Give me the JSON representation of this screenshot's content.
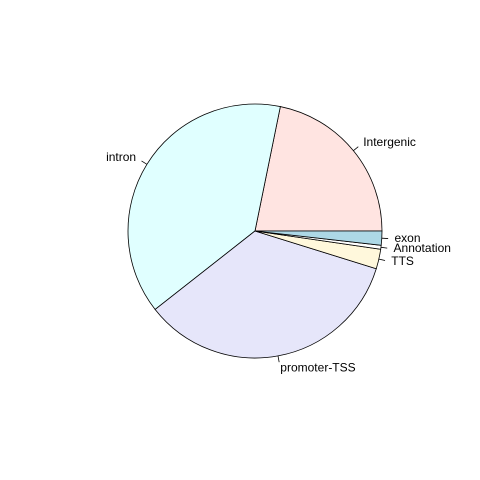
{
  "chart_data": {
    "type": "pie",
    "start_angle_deg": 0,
    "direction": "counterclockwise",
    "slices": [
      {
        "label": "Intergenic",
        "value": 21.8,
        "color": "#FFE4E1"
      },
      {
        "label": "intron",
        "value": 38.8,
        "color": "#E0FFFF"
      },
      {
        "label": "promoter-TSS",
        "value": 34.6,
        "color": "#E6E6FA"
      },
      {
        "label": "TTS",
        "value": 2.5,
        "color": "#FFF8DC"
      },
      {
        "label": "Annotation",
        "value": 0.5,
        "color": "#FFFFFF"
      },
      {
        "label": "exon",
        "value": 1.8,
        "color": "#ADD8E6"
      }
    ]
  }
}
